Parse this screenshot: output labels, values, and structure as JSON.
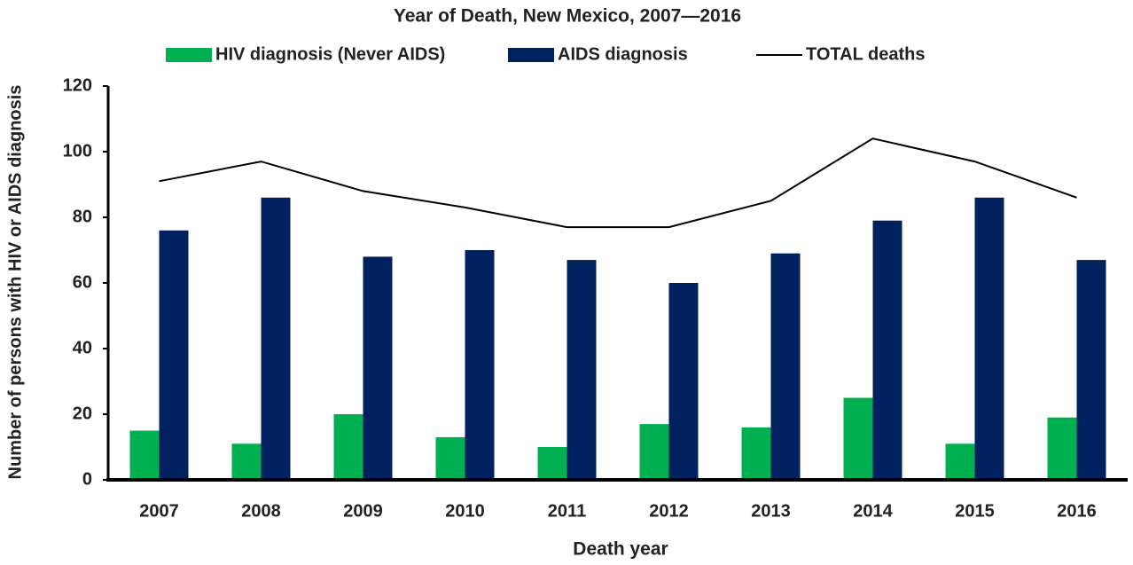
{
  "chart_data": {
    "type": "bar",
    "title": "Year of Death, New Mexico, 2007—2016",
    "x_label": "Death year",
    "y_label": "Number of persons with HIV or AIDS diagnosis",
    "categories": [
      "2007",
      "2008",
      "2009",
      "2010",
      "2011",
      "2012",
      "2013",
      "2014",
      "2015",
      "2016"
    ],
    "series": [
      {
        "name": "HIV diagnosis (Never AIDS)",
        "type": "bar",
        "color": "#00b050",
        "values": [
          15,
          11,
          20,
          13,
          10,
          17,
          16,
          25,
          11,
          19
        ]
      },
      {
        "name": "AIDS diagnosis",
        "type": "bar",
        "color": "#002060",
        "values": [
          76,
          86,
          68,
          70,
          67,
          60,
          69,
          79,
          86,
          67
        ]
      },
      {
        "name": "TOTAL deaths",
        "type": "line",
        "color": "#000000",
        "values": [
          91,
          97,
          88,
          83,
          77,
          77,
          85,
          104,
          97,
          86
        ]
      }
    ],
    "ylim": [
      0,
      120
    ],
    "yticks": [
      0,
      20,
      40,
      60,
      80,
      100,
      120
    ],
    "legend": "top",
    "grid": false
  }
}
